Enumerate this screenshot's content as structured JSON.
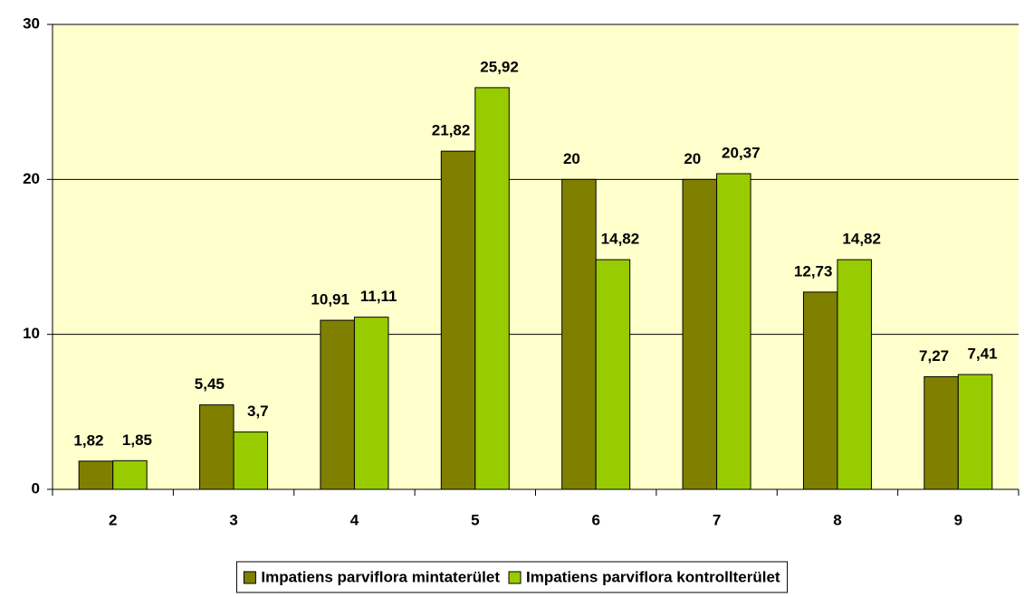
{
  "chart_data": {
    "type": "bar",
    "categories": [
      "2",
      "3",
      "4",
      "5",
      "6",
      "7",
      "8",
      "9"
    ],
    "series": [
      {
        "name": "Impatiens parviflora mintaterület",
        "color": "#808000",
        "values": [
          1.82,
          5.45,
          10.91,
          21.82,
          20,
          20,
          12.73,
          7.27
        ],
        "value_labels": [
          "1,82",
          "5,45",
          "10,91",
          "21,82",
          "20",
          "20",
          "12,73",
          "7,27"
        ]
      },
      {
        "name": "Impatiens parviflora kontrollterület",
        "color": "#99CC00",
        "values": [
          1.85,
          3.7,
          11.11,
          25.92,
          14.82,
          20.37,
          14.82,
          7.41
        ],
        "value_labels": [
          "1,85",
          "3,7",
          "11,11",
          "25,92",
          "14,82",
          "20,37",
          "14,82",
          "7,41"
        ]
      }
    ],
    "ylim": [
      0,
      30
    ],
    "yticks": [
      0,
      10,
      20,
      30
    ],
    "grid": true,
    "legend": "bottom"
  }
}
